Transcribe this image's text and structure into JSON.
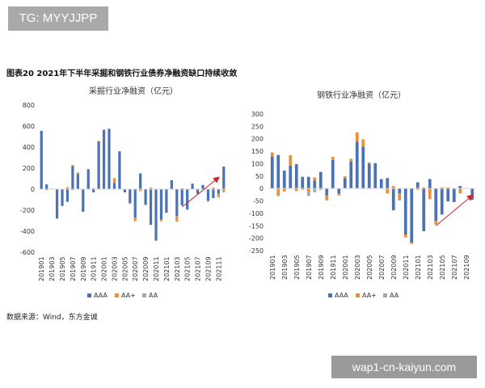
{
  "watermark_top": "TG: MYYJJPP",
  "watermark_bottom": "wap1-cn-kaiyun.com",
  "figure_title": "图表20  2021年下半年采掘和钢铁行业债券净融资缺口持续收敛",
  "source": "数据来源：Wind，东方金诚",
  "colors": {
    "AAA": "#4a72b5",
    "AA+": "#e8913d",
    "AA": "#a5a5a5",
    "arrow": "#d2232a"
  },
  "chart_data": [
    {
      "type": "bar",
      "stacked": true,
      "title": "采掘行业净融资（亿元）",
      "ylim": [
        -600,
        800
      ],
      "yticks": [
        -600,
        -400,
        -200,
        0,
        200,
        400,
        600,
        800
      ],
      "categories": [
        "201901",
        "201902",
        "201903",
        "201904",
        "201905",
        "201906",
        "201907",
        "201908",
        "201909",
        "201910",
        "201911",
        "201912",
        "202001",
        "202002",
        "202003",
        "202004",
        "202005",
        "202006",
        "202007",
        "202008",
        "202009",
        "202010",
        "202011",
        "202012",
        "202101",
        "202102",
        "202103",
        "202104",
        "202105",
        "202106",
        "202107",
        "202108",
        "202109",
        "202110",
        "202111",
        "202112"
      ],
      "xticklabels": [
        "201901",
        "201903",
        "201905",
        "201907",
        "201909",
        "201911",
        "202001",
        "202003",
        "202005",
        "202007",
        "202009",
        "202011",
        "202101",
        "202103",
        "202105",
        "202107",
        "202109",
        "202111"
      ],
      "series": [
        {
          "name": "AAA",
          "values": [
            555,
            45,
            5,
            -280,
            -160,
            -120,
            220,
            145,
            -215,
            190,
            -30,
            455,
            565,
            575,
            60,
            360,
            -30,
            -130,
            -270,
            150,
            -150,
            -340,
            -490,
            -290,
            -225,
            85,
            -255,
            -155,
            -195,
            50,
            -45,
            40,
            -110,
            -85,
            -45,
            215
          ]
        },
        {
          "name": "AA+",
          "values": [
            -5,
            -10,
            0,
            0,
            0,
            20,
            10,
            15,
            0,
            0,
            10,
            5,
            0,
            0,
            45,
            0,
            0,
            -10,
            -35,
            -20,
            0,
            15,
            0,
            -15,
            0,
            0,
            -55,
            10,
            0,
            5,
            0,
            0,
            0,
            15,
            -30,
            -30
          ]
        },
        {
          "name": "AA",
          "values": [
            0,
            0,
            0,
            0,
            0,
            0,
            -10,
            0,
            0,
            0,
            0,
            0,
            0,
            0,
            0,
            0,
            0,
            0,
            0,
            0,
            0,
            0,
            0,
            0,
            0,
            0,
            0,
            0,
            0,
            0,
            0,
            0,
            -10,
            0,
            -5,
            0
          ]
        }
      ],
      "legend": "bottom",
      "trend_arrow": {
        "from": [
          "202104",
          -170
        ],
        "to": [
          "202111",
          110
        ]
      }
    },
    {
      "type": "bar",
      "stacked": true,
      "title": "钢铁行业净融资（亿元）",
      "ylim": [
        -250,
        300
      ],
      "yticks": [
        -250,
        -200,
        -150,
        -100,
        -50,
        0,
        50,
        100,
        150,
        200,
        250,
        300
      ],
      "categories": [
        "201901",
        "201902",
        "201903",
        "201904",
        "201905",
        "201906",
        "201907",
        "201908",
        "201909",
        "201910",
        "201911",
        "201912",
        "202001",
        "202002",
        "202003",
        "202004",
        "202005",
        "202006",
        "202007",
        "202008",
        "202009",
        "202010",
        "202011",
        "202012",
        "202101",
        "202102",
        "202103",
        "202104",
        "202105",
        "202106",
        "202107",
        "202108",
        "202109",
        "202110"
      ],
      "xticklabels": [
        "201901",
        "201903",
        "201905",
        "201907",
        "201909",
        "201911",
        "202001",
        "202003",
        "202005",
        "202007",
        "202009",
        "202011",
        "202101",
        "202103",
        "202105",
        "202107",
        "202109"
      ],
      "series": [
        {
          "name": "AAA",
          "values": [
            130,
            135,
            72,
            92,
            98,
            47,
            47,
            32,
            67,
            -28,
            115,
            -20,
            42,
            108,
            188,
            168,
            100,
            102,
            38,
            42,
            -88,
            -20,
            -185,
            -218,
            25,
            -172,
            38,
            -130,
            -105,
            -52,
            -55,
            10,
            2,
            -45
          ]
        },
        {
          "name": "AA+",
          "values": [
            15,
            -30,
            -12,
            42,
            -10,
            -5,
            -15,
            13,
            0,
            -20,
            12,
            -8,
            7,
            12,
            38,
            30,
            5,
            0,
            0,
            -20,
            10,
            -28,
            -12,
            -5,
            -5,
            5,
            -43,
            -15,
            5,
            5,
            0,
            -20,
            0,
            0
          ]
        },
        {
          "name": "AA",
          "values": [
            0,
            0,
            0,
            0,
            0,
            0,
            -15,
            -15,
            -5,
            0,
            0,
            0,
            0,
            0,
            0,
            0,
            0,
            0,
            0,
            0,
            0,
            0,
            0,
            0,
            0,
            0,
            0,
            0,
            0,
            0,
            0,
            0,
            0,
            0
          ]
        }
      ],
      "legend": "bottom",
      "trend_arrow": {
        "from": [
          "202104",
          -150
        ],
        "to": [
          "202110",
          -28
        ]
      }
    }
  ]
}
